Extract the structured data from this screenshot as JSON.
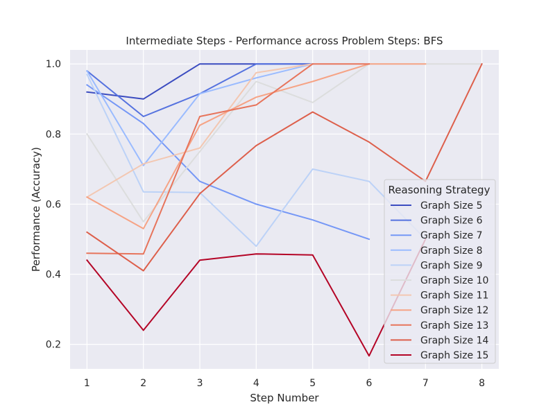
{
  "chart_data": {
    "type": "line",
    "title": "Intermediate Steps - Performance across Problem Steps: BFS",
    "xlabel": "Step Number",
    "ylabel": "Performance (Accuracy)",
    "xlim": [
      0.7,
      8.3
    ],
    "ylim": [
      0.13,
      1.04
    ],
    "xticks": [
      1,
      2,
      3,
      4,
      5,
      6,
      7,
      8
    ],
    "yticks": [
      0.2,
      0.4,
      0.6,
      0.8,
      1.0
    ],
    "ytick_labels": [
      "0.2",
      "0.4",
      "0.6",
      "0.8",
      "1.0"
    ],
    "grid": true,
    "legend_title": "Reasoning Strategy",
    "legend_position": "right",
    "series": [
      {
        "name": "Graph Size 5",
        "color": "#3b4cc0",
        "x": [
          1,
          2,
          3,
          4,
          5
        ],
        "values": [
          0.92,
          0.9,
          1.0,
          1.0,
          1.0
        ]
      },
      {
        "name": "Graph Size 6",
        "color": "#5572df",
        "x": [
          1,
          2,
          3,
          4,
          5
        ],
        "values": [
          0.98,
          0.85,
          0.915,
          1.0,
          1.0
        ]
      },
      {
        "name": "Graph Size 7",
        "color": "#7597f6",
        "x": [
          1,
          2,
          3,
          4,
          5,
          6
        ],
        "values": [
          0.94,
          0.83,
          0.665,
          0.6,
          0.555,
          0.5
        ]
      },
      {
        "name": "Graph Size 8",
        "color": "#9abbff",
        "x": [
          1,
          2,
          3,
          4,
          5
        ],
        "values": [
          0.98,
          0.71,
          0.915,
          0.96,
          1.0
        ]
      },
      {
        "name": "Graph Size 9",
        "color": "#bcd2f7",
        "x": [
          1,
          2,
          3,
          4,
          5,
          6,
          7
        ],
        "values": [
          0.97,
          0.635,
          0.633,
          0.48,
          0.7,
          0.665,
          0.5
        ]
      },
      {
        "name": "Graph Size 10",
        "color": "#dcdddd",
        "x": [
          1,
          2,
          3,
          4,
          5,
          6,
          7,
          8
        ],
        "values": [
          0.8,
          0.55,
          0.75,
          0.95,
          0.89,
          1.0,
          1.0,
          1.0
        ]
      },
      {
        "name": "Graph Size 11",
        "color": "#f3c7b1",
        "x": [
          1,
          2,
          3,
          4,
          5
        ],
        "values": [
          0.62,
          0.715,
          0.76,
          0.975,
          1.0
        ]
      },
      {
        "name": "Graph Size 12",
        "color": "#f6a385",
        "x": [
          1,
          2,
          3,
          4,
          5,
          6,
          7
        ],
        "values": [
          0.62,
          0.53,
          0.825,
          0.905,
          0.95,
          1.0,
          1.0
        ]
      },
      {
        "name": "Graph Size 13",
        "color": "#e7745b",
        "x": [
          1,
          2,
          3,
          4,
          5,
          6
        ],
        "values": [
          0.46,
          0.458,
          0.85,
          0.883,
          1.0,
          1.0
        ]
      },
      {
        "name": "Graph Size 14",
        "color": "#dd5f4b",
        "x": [
          1,
          2,
          3,
          4,
          5,
          6,
          7,
          8
        ],
        "values": [
          0.52,
          0.41,
          0.63,
          0.767,
          0.863,
          0.777,
          0.665,
          1.0
        ]
      },
      {
        "name": "Graph Size 15",
        "color": "#b40426",
        "x": [
          1,
          2,
          3,
          4,
          5,
          6,
          7
        ],
        "values": [
          0.44,
          0.24,
          0.44,
          0.458,
          0.455,
          0.167,
          0.5
        ]
      }
    ]
  }
}
